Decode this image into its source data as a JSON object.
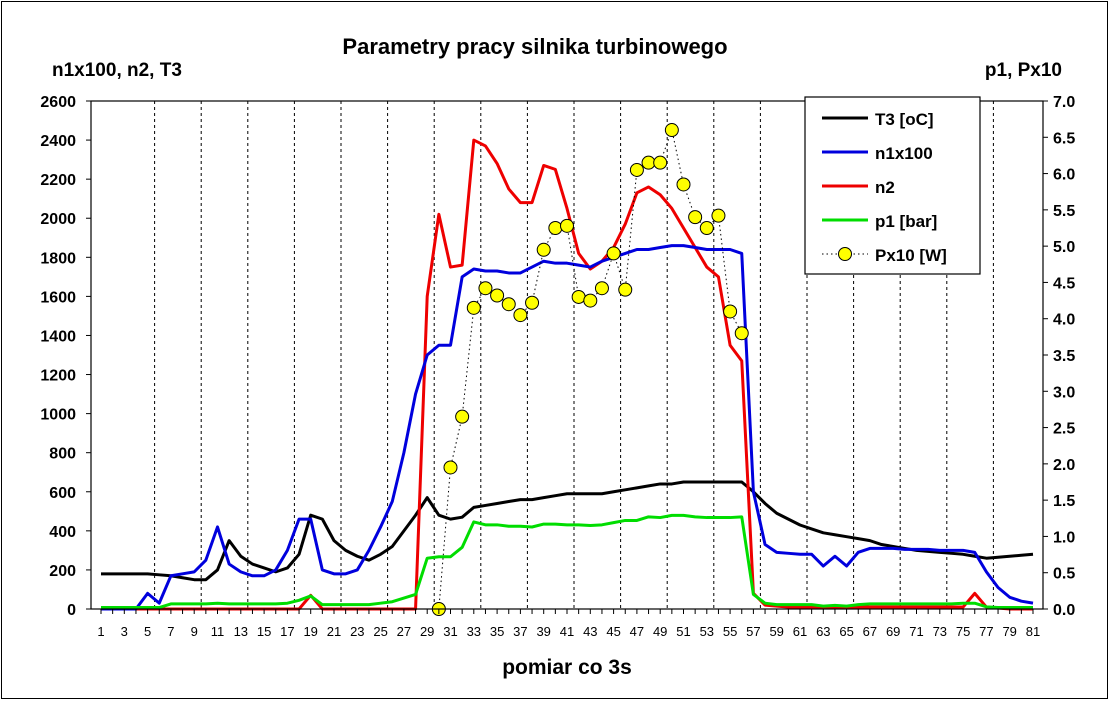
{
  "chart_data": {
    "type": "line",
    "title": "Parametry pracy silnika turbinowego",
    "xlabel": "pomiar co 3s",
    "ylabel_left": "n1x100, n2, T3",
    "ylabel_right": "p1, Px10",
    "ylim_left": [
      0,
      2600
    ],
    "ylim_right": [
      0,
      7
    ],
    "yticks_left": [
      "0",
      "200",
      "400",
      "600",
      "800",
      "1000",
      "1200",
      "1400",
      "1600",
      "1800",
      "2000",
      "2200",
      "2400",
      "2600"
    ],
    "yticks_right": [
      "0.0",
      "0.5",
      "1.0",
      "1.5",
      "2.0",
      "2.5",
      "3.0",
      "3.5",
      "4.0",
      "4.5",
      "5.0",
      "5.5",
      "6.0",
      "6.5",
      "7.0"
    ],
    "x": [
      1,
      2,
      3,
      4,
      5,
      6,
      7,
      8,
      9,
      10,
      11,
      12,
      13,
      14,
      15,
      16,
      17,
      18,
      19,
      20,
      21,
      22,
      23,
      24,
      25,
      26,
      27,
      28,
      29,
      30,
      31,
      32,
      33,
      34,
      35,
      36,
      37,
      38,
      39,
      40,
      41,
      42,
      43,
      44,
      45,
      46,
      47,
      48,
      49,
      50,
      51,
      52,
      53,
      54,
      55,
      56,
      57,
      58,
      59,
      60,
      61,
      62,
      63,
      64,
      65,
      66,
      67,
      68,
      69,
      70,
      71,
      72,
      73,
      74,
      75,
      76,
      77,
      78,
      79,
      80,
      81
    ],
    "xtick_labels": [
      "1",
      "3",
      "5",
      "7",
      "9",
      "11",
      "13",
      "15",
      "17",
      "19",
      "21",
      "23",
      "25",
      "27",
      "29",
      "31",
      "33",
      "35",
      "37",
      "39",
      "41",
      "43",
      "45",
      "47",
      "49",
      "51",
      "53",
      "55",
      "57",
      "59",
      "61",
      "63",
      "65",
      "67",
      "69",
      "71",
      "73",
      "75",
      "77",
      "79",
      "81"
    ],
    "grid": "vertical dashed",
    "legend_position": "top-right",
    "colors": {
      "T3": "#000000",
      "n1": "#0000dd",
      "n2": "#ee0000",
      "p1": "#00dd00",
      "px_fill": "#ffff00",
      "px_stroke": "#000000"
    },
    "series": [
      {
        "name": "T3 [oC]",
        "axis": "left",
        "color": "#000000",
        "values": [
          180,
          180,
          180,
          180,
          180,
          175,
          170,
          160,
          150,
          150,
          200,
          350,
          270,
          230,
          210,
          190,
          210,
          280,
          480,
          460,
          350,
          300,
          270,
          250,
          280,
          320,
          400,
          480,
          570,
          480,
          460,
          470,
          520,
          530,
          540,
          550,
          560,
          560,
          570,
          580,
          590,
          590,
          590,
          590,
          600,
          610,
          620,
          630,
          640,
          640,
          650,
          650,
          650,
          650,
          650,
          650,
          600,
          540,
          490,
          460,
          430,
          410,
          390,
          380,
          370,
          360,
          350,
          330,
          320,
          310,
          300,
          295,
          290,
          285,
          280,
          270,
          260,
          265,
          270,
          275,
          280
        ]
      },
      {
        "name": "n1x100",
        "axis": "left",
        "color": "#0000dd",
        "values": [
          0,
          0,
          0,
          0,
          80,
          30,
          170,
          180,
          190,
          250,
          420,
          230,
          190,
          170,
          170,
          200,
          300,
          460,
          460,
          200,
          180,
          180,
          200,
          300,
          420,
          550,
          800,
          1100,
          1300,
          1350,
          1350,
          1700,
          1740,
          1730,
          1730,
          1720,
          1720,
          1750,
          1780,
          1770,
          1770,
          1760,
          1750,
          1780,
          1800,
          1820,
          1840,
          1840,
          1850,
          1860,
          1860,
          1850,
          1840,
          1840,
          1840,
          1820,
          600,
          330,
          290,
          285,
          280,
          280,
          220,
          270,
          220,
          290,
          310,
          310,
          310,
          305,
          305,
          305,
          300,
          300,
          300,
          290,
          190,
          110,
          60,
          40,
          30
        ]
      },
      {
        "name": "n2",
        "axis": "left",
        "color": "#ee0000",
        "values": [
          0,
          0,
          0,
          0,
          0,
          0,
          0,
          0,
          0,
          0,
          0,
          0,
          0,
          0,
          0,
          0,
          0,
          0,
          70,
          0,
          0,
          0,
          0,
          0,
          0,
          0,
          0,
          0,
          1600,
          2020,
          1750,
          1760,
          2400,
          2370,
          2280,
          2150,
          2080,
          2080,
          2270,
          2250,
          2050,
          1820,
          1740,
          1780,
          1850,
          1970,
          2130,
          2160,
          2120,
          2050,
          1950,
          1850,
          1750,
          1700,
          1350,
          1270,
          80,
          20,
          15,
          10,
          10,
          10,
          10,
          10,
          10,
          10,
          10,
          10,
          10,
          10,
          10,
          10,
          10,
          10,
          10,
          80,
          10,
          5,
          0,
          0,
          0
        ]
      },
      {
        "name": "p1 [bar]",
        "axis": "right",
        "color": "#00dd00",
        "values": [
          0.02,
          0.02,
          0.02,
          0.02,
          0.02,
          0.02,
          0.07,
          0.07,
          0.07,
          0.07,
          0.08,
          0.07,
          0.07,
          0.07,
          0.07,
          0.07,
          0.08,
          0.12,
          0.18,
          0.06,
          0.06,
          0.06,
          0.06,
          0.06,
          0.08,
          0.1,
          0.15,
          0.2,
          0.7,
          0.72,
          0.72,
          0.85,
          1.2,
          1.16,
          1.16,
          1.14,
          1.14,
          1.13,
          1.17,
          1.17,
          1.16,
          1.16,
          1.15,
          1.16,
          1.19,
          1.22,
          1.22,
          1.27,
          1.26,
          1.29,
          1.29,
          1.27,
          1.26,
          1.26,
          1.26,
          1.27,
          0.2,
          0.08,
          0.06,
          0.06,
          0.06,
          0.06,
          0.04,
          0.05,
          0.04,
          0.06,
          0.07,
          0.07,
          0.07,
          0.07,
          0.07,
          0.07,
          0.07,
          0.07,
          0.08,
          0.08,
          0.03,
          0.02,
          0.02,
          0.02,
          0.02
        ]
      },
      {
        "name": "Px10 [W]",
        "axis": "right",
        "color": "#000000",
        "marker": "circle",
        "line": "dotted",
        "x": [
          30,
          31,
          32,
          33,
          34,
          35,
          36,
          37,
          38,
          39,
          40,
          41,
          42,
          43,
          44,
          45,
          46,
          47,
          48,
          49,
          50,
          51,
          52,
          53,
          54,
          55,
          56
        ],
        "values": [
          0.0,
          1.95,
          2.65,
          4.15,
          4.42,
          4.32,
          4.2,
          4.05,
          4.22,
          4.95,
          5.25,
          5.28,
          4.3,
          4.25,
          4.42,
          4.9,
          4.4,
          6.05,
          6.15,
          6.15,
          6.6,
          5.85,
          5.4,
          5.25,
          5.42,
          4.1,
          3.8
        ]
      }
    ]
  }
}
